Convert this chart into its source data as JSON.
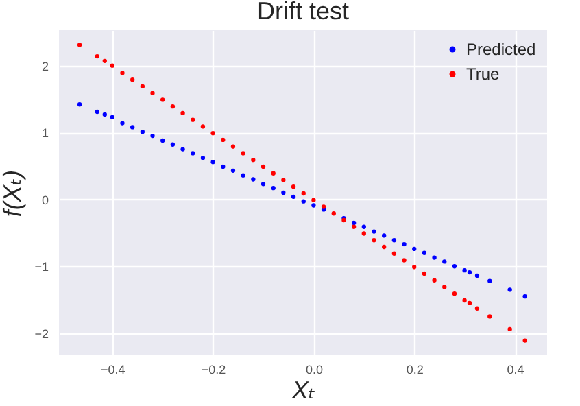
{
  "chart_data": {
    "type": "scatter",
    "title": "Drift test",
    "xlabel": "Xₜ",
    "ylabel": "f(Xₜ)",
    "x": [
      -0.465,
      -0.43,
      -0.415,
      -0.4,
      -0.38,
      -0.36,
      -0.34,
      -0.32,
      -0.3,
      -0.28,
      -0.26,
      -0.24,
      -0.22,
      -0.2,
      -0.18,
      -0.16,
      -0.14,
      -0.12,
      -0.1,
      -0.08,
      -0.06,
      -0.04,
      -0.02,
      0,
      0.02,
      0.04,
      0.06,
      0.08,
      0.1,
      0.12,
      0.14,
      0.16,
      0.18,
      0.2,
      0.22,
      0.24,
      0.26,
      0.28,
      0.3,
      0.31,
      0.325,
      0.35,
      0.39,
      0.42
    ],
    "series": [
      {
        "name": "Predicted",
        "color": "#0000ff",
        "values": [
          1.42,
          1.31,
          1.27,
          1.23,
          1.14,
          1.08,
          1.01,
          0.95,
          0.88,
          0.82,
          0.75,
          0.69,
          0.62,
          0.56,
          0.49,
          0.43,
          0.36,
          0.3,
          0.23,
          0.17,
          0.1,
          0.04,
          -0.03,
          -0.09,
          -0.15,
          null,
          -0.28,
          -0.35,
          -0.41,
          -0.48,
          -0.54,
          -0.61,
          -0.67,
          -0.74,
          -0.8,
          -0.87,
          -0.93,
          -1.0,
          -1.06,
          -1.09,
          -1.14,
          -1.22,
          -1.35,
          -1.45
        ]
      },
      {
        "name": "True",
        "color": "#ff0000",
        "values": [
          2.31,
          2.14,
          2.07,
          2.0,
          1.89,
          1.79,
          1.69,
          1.59,
          1.49,
          1.39,
          1.29,
          1.19,
          1.09,
          0.99,
          0.89,
          0.79,
          0.69,
          0.59,
          0.49,
          0.39,
          0.29,
          0.19,
          0.09,
          -0.01,
          -0.11,
          -0.21,
          -0.31,
          -0.41,
          -0.51,
          -0.61,
          -0.71,
          -0.81,
          -0.91,
          -1.01,
          -1.11,
          -1.21,
          -1.31,
          -1.41,
          -1.51,
          -1.55,
          -1.63,
          -1.75,
          -1.94,
          -2.11
        ]
      }
    ],
    "xlim": [
      -0.506,
      0.464
    ],
    "xticks": [
      {
        "value": -0.4,
        "label": "−0.4"
      },
      {
        "value": -0.2,
        "label": "−0.2"
      },
      {
        "value": 0,
        "label": "0.0"
      },
      {
        "value": 0.2,
        "label": "0.2"
      },
      {
        "value": 0.4,
        "label": "0.4"
      }
    ],
    "ylim": [
      -2.33,
      2.53
    ],
    "yticks": [
      {
        "value": -2,
        "label": "−2"
      },
      {
        "value": -1,
        "label": "−1"
      },
      0,
      1,
      2
    ],
    "grid": true,
    "legend": "top right",
    "marker": "circle"
  }
}
